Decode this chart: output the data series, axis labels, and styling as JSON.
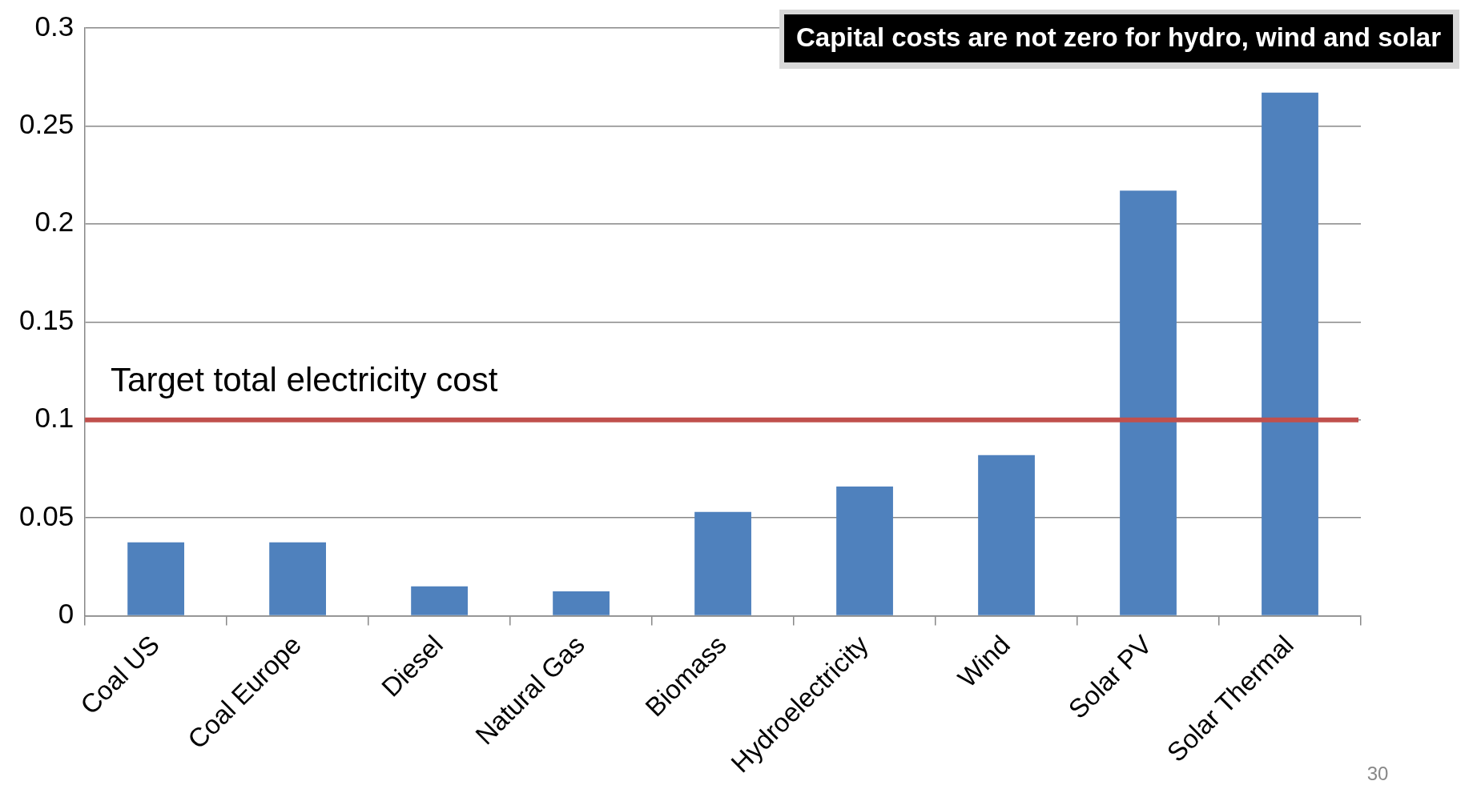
{
  "chart_data": {
    "type": "bar",
    "categories": [
      "Coal US",
      "Coal Europe",
      "Diesel",
      "Natural Gas",
      "Biomass",
      "Hydroelectricity",
      "Wind",
      "Solar PV",
      "Solar Thermal"
    ],
    "values": [
      0.0375,
      0.0375,
      0.015,
      0.0125,
      0.053,
      0.066,
      0.082,
      0.217,
      0.267
    ],
    "color": "#4f81bd",
    "ylim": [
      0,
      0.3
    ],
    "yticks": [
      0,
      0.05,
      0.1,
      0.15,
      0.2,
      0.25,
      0.3
    ],
    "grid": "y",
    "ref_lines": [
      {
        "axis": "y",
        "value": 0.1,
        "label": "Target total electricity cost",
        "color": "#c0504d"
      }
    ],
    "annotations": [
      "Capital costs are not zero for hydro, wind and solar",
      "30"
    ]
  }
}
